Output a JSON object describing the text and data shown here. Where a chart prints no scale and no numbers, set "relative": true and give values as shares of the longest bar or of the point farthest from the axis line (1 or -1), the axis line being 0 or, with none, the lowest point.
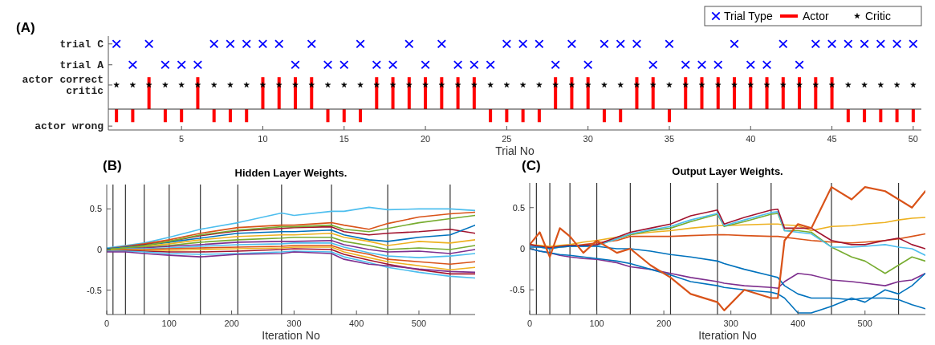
{
  "chart_data": [
    {
      "type": "bar",
      "xlabel": "Trial No",
      "annotations": [
        "(A)"
      ],
      "legend": "top right",
      "x": [
        1,
        2,
        3,
        4,
        5,
        6,
        7,
        8,
        9,
        10,
        11,
        12,
        13,
        14,
        15,
        16,
        17,
        18,
        19,
        20,
        21,
        22,
        23,
        24,
        25,
        26,
        27,
        28,
        29,
        30,
        31,
        32,
        33,
        34,
        35,
        36,
        37,
        38,
        39,
        40,
        41,
        42,
        43,
        44,
        45,
        46,
        47,
        48,
        49,
        50
      ],
      "xlim": [
        0.5,
        50.5
      ],
      "xticks": [
        5,
        10,
        15,
        20,
        25,
        30,
        35,
        40,
        45,
        50
      ],
      "relative": true,
      "y_categories": [
        "trial C",
        "trial A",
        "actor correct\ncritic",
        "actor wrong"
      ],
      "series": [
        {
          "name": "Trial Type",
          "type": "scatter",
          "marker": "cross",
          "color": "#0000ff",
          "values": [
            1,
            0.68,
            1,
            0.68,
            0.68,
            0.68,
            1,
            1,
            1,
            1,
            1,
            0.68,
            1,
            0.68,
            0.68,
            1,
            0.68,
            0.68,
            1,
            0.68,
            1,
            0.68,
            0.68,
            0.68,
            1,
            1,
            1,
            0.68,
            1,
            0.68,
            1,
            1,
            1,
            0.68,
            1,
            0.68,
            0.68,
            0.68,
            1,
            0.68,
            0.68,
            1,
            0.68,
            1,
            1,
            1,
            1,
            1,
            1,
            1
          ]
        },
        {
          "name": "Actor",
          "type": "bar",
          "color": "#ff0000",
          "values": [
            -0.2,
            -0.2,
            0.49,
            -0.2,
            -0.2,
            0.49,
            -0.2,
            -0.2,
            -0.2,
            0.49,
            0.49,
            0.49,
            0.49,
            -0.2,
            -0.2,
            -0.2,
            0.49,
            0.49,
            0.49,
            0.49,
            0.49,
            0.49,
            0.49,
            -0.2,
            -0.2,
            -0.2,
            -0.2,
            0.49,
            0.49,
            0.49,
            -0.2,
            -0.2,
            0.49,
            0.49,
            -0.2,
            0.49,
            0.49,
            0.49,
            0.49,
            0.49,
            0.49,
            0.49,
            0.49,
            0.49,
            0.49,
            -0.2,
            -0.2,
            -0.2,
            -0.2,
            -0.2
          ]
        },
        {
          "name": "Critic",
          "type": "scatter",
          "marker": "star",
          "color": "#000000",
          "values": [
            0.37,
            0.37,
            0.37,
            0.37,
            0.37,
            0.37,
            0.37,
            0.37,
            0.37,
            0.37,
            0.37,
            0.37,
            0.37,
            0.37,
            0.37,
            0.37,
            0.37,
            0.37,
            0.37,
            0.37,
            0.37,
            0.37,
            0.37,
            0.37,
            0.37,
            0.37,
            0.37,
            0.37,
            0.37,
            0.37,
            0.37,
            0.37,
            0.37,
            0.37,
            0.37,
            0.37,
            0.37,
            0.37,
            0.37,
            0.37,
            0.37,
            0.37,
            0.37,
            0.37,
            0.37,
            0.37,
            0.37,
            0.37,
            0.37,
            0.37
          ]
        }
      ]
    },
    {
      "type": "line",
      "title": "Hidden Layer Weights.",
      "xlabel": "Iteration No",
      "annotations": [
        "(B)"
      ],
      "x": [
        0,
        30,
        60,
        100,
        150,
        210,
        280,
        300,
        360,
        380,
        420,
        450,
        500,
        550,
        590
      ],
      "xlim": [
        0,
        590
      ],
      "xticks": [
        0,
        100,
        200,
        300,
        400,
        500
      ],
      "ylim": [
        -0.8,
        0.8
      ],
      "yticks": [
        -0.5,
        0,
        0.5
      ],
      "ref_lines": [
        {
          "axis": "x",
          "value": 10,
          "color": "#333333"
        },
        {
          "axis": "x",
          "value": 30,
          "color": "#333333"
        },
        {
          "axis": "x",
          "value": 60,
          "color": "#333333"
        },
        {
          "axis": "x",
          "value": 100,
          "color": "#333333"
        },
        {
          "axis": "x",
          "value": 150,
          "color": "#333333"
        },
        {
          "axis": "x",
          "value": 210,
          "color": "#333333"
        },
        {
          "axis": "x",
          "value": 280,
          "color": "#333333"
        },
        {
          "axis": "x",
          "value": 360,
          "color": "#333333"
        },
        {
          "axis": "x",
          "value": 450,
          "color": "#333333"
        },
        {
          "axis": "x",
          "value": 550,
          "color": "#333333"
        }
      ],
      "series": [
        {
          "color": "#4dbeee",
          "values": [
            0.02,
            0.05,
            0.08,
            0.15,
            0.25,
            0.33,
            0.45,
            0.42,
            0.47,
            0.47,
            0.52,
            0.49,
            0.5,
            0.5,
            0.48
          ]
        },
        {
          "color": "#d95319",
          "values": [
            0.01,
            0.04,
            0.07,
            0.12,
            0.2,
            0.27,
            0.3,
            0.3,
            0.33,
            0.3,
            0.25,
            0.32,
            0.4,
            0.44,
            0.46
          ]
        },
        {
          "color": "#a2142f",
          "values": [
            0,
            0.03,
            0.06,
            0.1,
            0.17,
            0.23,
            0.26,
            0.27,
            0.28,
            0.22,
            0.18,
            0.2,
            0.22,
            0.25,
            0.2
          ]
        },
        {
          "color": "#0072bd",
          "values": [
            0.01,
            0.03,
            0.05,
            0.09,
            0.14,
            0.2,
            0.22,
            0.22,
            0.24,
            0.18,
            0.12,
            0.1,
            0.15,
            0.18,
            0.3
          ]
        },
        {
          "color": "#edb120",
          "values": [
            0,
            0.02,
            0.04,
            0.07,
            0.12,
            0.16,
            0.18,
            0.18,
            0.2,
            0.15,
            0.1,
            0.05,
            0.1,
            0.08,
            0.12
          ]
        },
        {
          "color": "#77ac30",
          "values": [
            0,
            0.02,
            0.03,
            0.05,
            0.09,
            0.12,
            0.14,
            0.15,
            0.15,
            0.1,
            0.05,
            0,
            0.02,
            0,
            0.05
          ]
        },
        {
          "color": "#7e2f8e",
          "values": [
            0,
            0.01,
            0.02,
            0.04,
            0.06,
            0.09,
            0.1,
            0.1,
            0.11,
            0.06,
            0,
            -0.03,
            -0.02,
            -0.05,
            0
          ]
        },
        {
          "color": "#4dbeee",
          "values": [
            0,
            0.01,
            0.01,
            0.02,
            0.04,
            0.06,
            0.07,
            0.08,
            0.08,
            0.03,
            -0.04,
            -0.08,
            -0.1,
            -0.08,
            -0.05
          ]
        },
        {
          "color": "#d95319",
          "values": [
            -0.01,
            0,
            0,
            0.01,
            0.02,
            0.03,
            0.04,
            0.05,
            0.05,
            0,
            -0.06,
            -0.12,
            -0.15,
            -0.18,
            -0.15
          ]
        },
        {
          "color": "#edb120",
          "values": [
            -0.01,
            0,
            -0.01,
            -0.01,
            0,
            0.01,
            0.02,
            0.03,
            0.03,
            -0.03,
            -0.1,
            -0.15,
            -0.2,
            -0.25,
            -0.22
          ]
        },
        {
          "color": "#a2142f",
          "values": [
            -0.02,
            -0.01,
            -0.02,
            -0.03,
            -0.03,
            -0.02,
            0,
            0.01,
            0,
            -0.06,
            -0.13,
            -0.18,
            -0.25,
            -0.3,
            -0.3
          ]
        },
        {
          "color": "#4dbeee",
          "values": [
            -0.02,
            -0.02,
            -0.03,
            -0.05,
            -0.06,
            -0.05,
            -0.03,
            -0.02,
            -0.03,
            -0.09,
            -0.16,
            -0.22,
            -0.28,
            -0.33,
            -0.35
          ]
        },
        {
          "color": "#7e2f8e",
          "values": [
            -0.03,
            -0.03,
            -0.05,
            -0.07,
            -0.09,
            -0.06,
            -0.05,
            -0.03,
            -0.05,
            -0.12,
            -0.18,
            -0.2,
            -0.24,
            -0.27,
            -0.28
          ]
        },
        {
          "color": "#77ac30",
          "values": [
            0,
            0.02,
            0.05,
            0.1,
            0.18,
            0.24,
            0.28,
            0.28,
            0.3,
            0.25,
            0.22,
            0.26,
            0.33,
            0.38,
            0.42
          ]
        }
      ]
    },
    {
      "type": "line",
      "title": "Output Layer Weights.",
      "xlabel": "Iteration No",
      "annotations": [
        "(C)"
      ],
      "x": [
        0,
        15,
        30,
        45,
        60,
        80,
        100,
        130,
        150,
        180,
        210,
        240,
        280,
        290,
        320,
        360,
        370,
        380,
        400,
        420,
        450,
        480,
        500,
        530,
        550,
        570,
        590
      ],
      "xlim": [
        0,
        590
      ],
      "xticks": [
        0,
        100,
        200,
        300,
        400,
        500
      ],
      "ylim": [
        -0.8,
        0.8
      ],
      "yticks": [
        -0.5,
        0,
        0.5
      ],
      "ref_lines": [
        {
          "axis": "x",
          "value": 10,
          "color": "#333333"
        },
        {
          "axis": "x",
          "value": 30,
          "color": "#333333"
        },
        {
          "axis": "x",
          "value": 60,
          "color": "#333333"
        },
        {
          "axis": "x",
          "value": 100,
          "color": "#333333"
        },
        {
          "axis": "x",
          "value": 150,
          "color": "#333333"
        },
        {
          "axis": "x",
          "value": 210,
          "color": "#333333"
        },
        {
          "axis": "x",
          "value": 280,
          "color": "#333333"
        },
        {
          "axis": "x",
          "value": 360,
          "color": "#333333"
        },
        {
          "axis": "x",
          "value": 450,
          "color": "#333333"
        },
        {
          "axis": "x",
          "value": 550,
          "color": "#333333"
        }
      ],
      "series": [
        {
          "color": "#edb120",
          "values": [
            0.05,
            0.04,
            0.03,
            0.04,
            0.05,
            0.08,
            0.1,
            0.14,
            0.17,
            0.2,
            0.22,
            0.25,
            0.28,
            0.28,
            0.29,
            0.3,
            0.3,
            0.29,
            0.28,
            0.22,
            0.27,
            0.28,
            0.3,
            0.32,
            0.35,
            0.37,
            0.38
          ]
        },
        {
          "color": "#d95319",
          "values": [
            0.05,
            0.03,
            0.02,
            0.02,
            0.03,
            0.05,
            0.07,
            0.1,
            0.15,
            0.15,
            0.15,
            0.16,
            0.17,
            0.17,
            0.16,
            0.15,
            0.15,
            0.14,
            0.12,
            0.1,
            0.08,
            0.07,
            0.08,
            0.1,
            0.12,
            0.15,
            0.18
          ]
        },
        {
          "color": "#77ac30",
          "values": [
            null,
            null,
            null,
            null,
            null,
            null,
            0.04,
            0.12,
            0.17,
            0.22,
            0.25,
            0.33,
            0.42,
            0.27,
            0.33,
            0.42,
            0.43,
            0.22,
            0.22,
            0.2,
            0.02,
            -0.1,
            -0.15,
            -0.3,
            -0.2,
            -0.1,
            -0.15
          ]
        },
        {
          "color": "#4dbeee",
          "values": [
            0.04,
            0.02,
            0,
            0.02,
            0.03,
            0.03,
            0.04,
            0.12,
            0.18,
            0.23,
            0.27,
            0.35,
            0.43,
            0.28,
            0.35,
            0.44,
            0.45,
            0.22,
            0.2,
            0.18,
            0.02,
            0.02,
            0.03,
            0.05,
            0.02,
            0.0,
            -0.08
          ]
        },
        {
          "color": "#a2142f",
          "values": [
            0.05,
            0.03,
            0.01,
            0.03,
            0.04,
            0.04,
            0.05,
            0.14,
            0.2,
            0.25,
            0.3,
            0.4,
            0.47,
            0.3,
            0.38,
            0.47,
            0.48,
            0.25,
            0.25,
            0.25,
            0.1,
            0.05,
            0.05,
            0.1,
            0.13,
            0.05,
            0
          ]
        },
        {
          "color": "#7e2f8e",
          "values": [
            0,
            -0.03,
            -0.05,
            -0.08,
            -0.1,
            -0.12,
            -0.13,
            -0.17,
            -0.22,
            -0.25,
            -0.3,
            -0.35,
            -0.4,
            -0.42,
            -0.45,
            -0.47,
            -0.48,
            -0.4,
            -0.3,
            -0.32,
            -0.38,
            -0.4,
            -0.42,
            -0.45,
            -0.4,
            -0.38,
            -0.3
          ]
        },
        {
          "color": "#0072bd",
          "values": [
            0.02,
            0.02,
            0,
            0.02,
            0.03,
            0.03,
            0.03,
            0,
            0,
            -0.03,
            -0.07,
            -0.1,
            -0.15,
            -0.18,
            -0.25,
            -0.33,
            -0.35,
            -0.45,
            -0.55,
            -0.6,
            -0.6,
            -0.62,
            -0.6,
            -0.6,
            -0.62,
            -0.68,
            -0.73
          ]
        },
        {
          "color": "#0072bd",
          "values": [
            0,
            -0.03,
            -0.05,
            -0.07,
            -0.08,
            -0.1,
            -0.12,
            -0.15,
            -0.18,
            -0.25,
            -0.32,
            -0.4,
            -0.45,
            -0.47,
            -0.5,
            -0.53,
            -0.55,
            -0.6,
            -0.78,
            -0.78,
            -0.7,
            -0.6,
            -0.65,
            -0.5,
            -0.55,
            -0.45,
            -0.3
          ]
        },
        {
          "color": "#d95319",
          "values": [
            0.05,
            0.2,
            -0.1,
            0.25,
            0.15,
            -0.05,
            0.1,
            -0.05,
            0,
            -0.2,
            -0.35,
            -0.55,
            -0.65,
            -0.75,
            -0.5,
            -0.6,
            -0.6,
            0.1,
            0.3,
            0.25,
            0.75,
            0.6,
            0.75,
            0.7,
            0.6,
            0.5,
            0.7
          ]
        }
      ]
    }
  ]
}
